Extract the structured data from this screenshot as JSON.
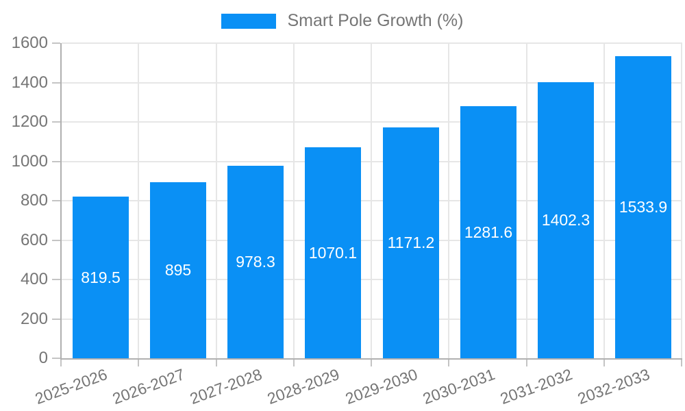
{
  "legend": {
    "label": "Smart Pole Growth (%)"
  },
  "chart_data": {
    "type": "bar",
    "title": "Smart Pole Growth (%)",
    "categories": [
      "2025-2026",
      "2026-2027",
      "2027-2028",
      "2028-2029",
      "2029-2030",
      "2030-2031",
      "2031-2032",
      "2032-2033"
    ],
    "values": [
      819.5,
      895,
      978.3,
      1070.1,
      1171.2,
      1281.6,
      1402.3,
      1533.9
    ],
    "value_labels": [
      "819.5",
      "895",
      "978.3",
      "1070.1",
      "1171.2",
      "1281.6",
      "1402.3",
      "1533.9"
    ],
    "xlabel": "",
    "ylabel": "",
    "ylim": [
      0,
      1600
    ],
    "yticks": [
      0,
      200,
      400,
      600,
      800,
      1000,
      1200,
      1400,
      1600
    ],
    "grid": true,
    "legend_position": "top-center",
    "bar_color": "#0a90f5",
    "value_label_color": "#ffffff",
    "axis_text_color": "#757575",
    "grid_color": "#e6e6e6",
    "axis_line_color": "#b0b0b0"
  }
}
